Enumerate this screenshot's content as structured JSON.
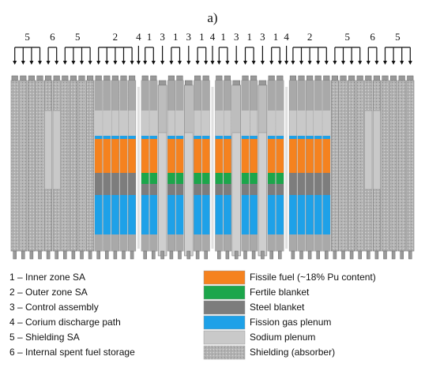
{
  "header": {
    "title": "a)"
  },
  "groups": [
    "5",
    "6",
    "5",
    "2",
    "4",
    "1",
    "3",
    "1",
    "3",
    "1",
    "4",
    "1",
    "3",
    "1",
    "3",
    "1",
    "4",
    "2",
    "5",
    "6",
    "5"
  ],
  "legend_left": [
    "1 – Inner zone SA",
    "2 – Outer zone SA",
    "3 – Control assembly",
    "4 – Corium discharge path",
    "5 – Shielding SA",
    "6 – Internal spent fuel storage"
  ],
  "legend_right": [
    {
      "label": "Fissile fuel (~18% Pu content)",
      "color": "#f5821f"
    },
    {
      "label": "Fertile blanket",
      "color": "#1ca64b"
    },
    {
      "label": "Steel blanket",
      "color": "#7d7d7d"
    },
    {
      "label": "Fission gas plenum",
      "color": "#1ea1e8"
    },
    {
      "label": "Sodium plenum",
      "color": "#c9c9c9"
    },
    {
      "label": "Shielding (absorber)",
      "color": "#b3b3b3"
    }
  ]
}
